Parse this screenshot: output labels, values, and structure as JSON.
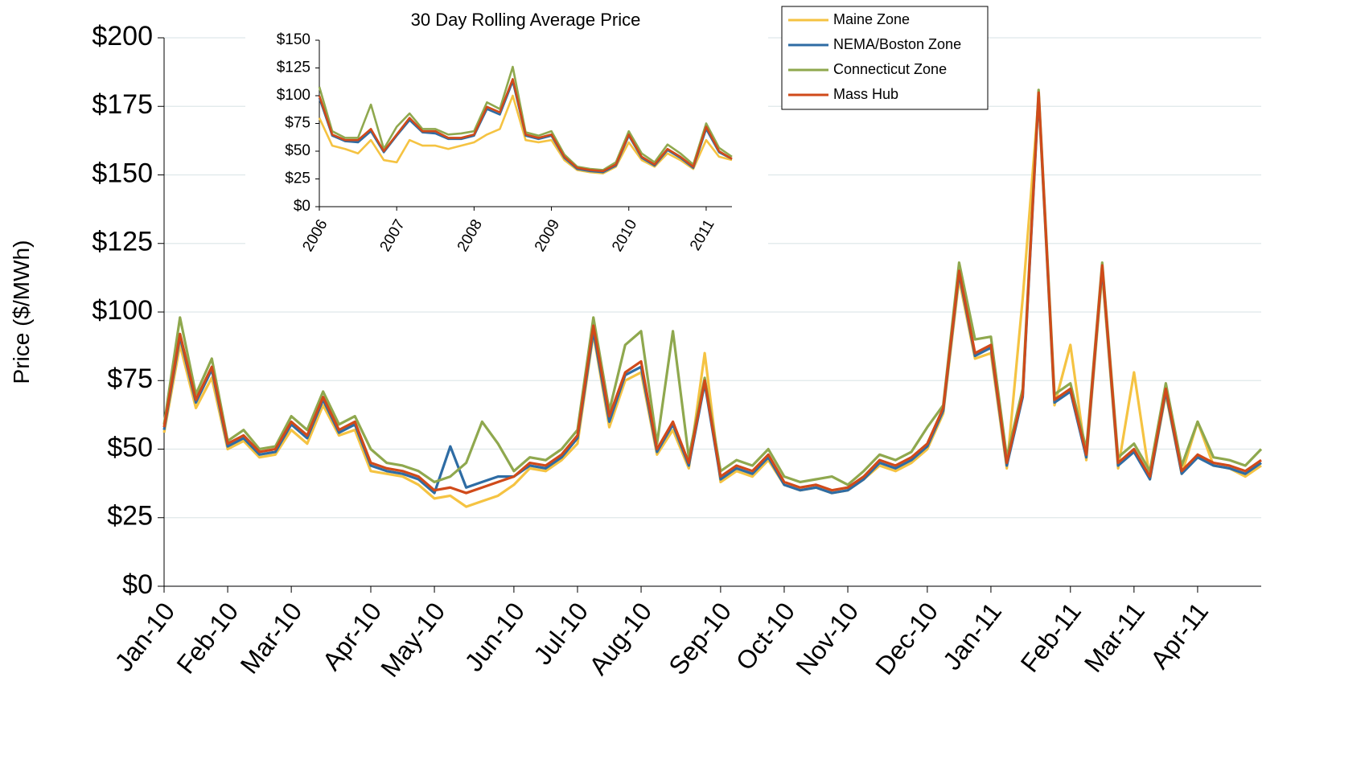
{
  "chart_data": [
    {
      "type": "line",
      "ylabel": "Price ($/MWh)",
      "grid": true,
      "legend": "upper right",
      "categories": [
        "Jan-10",
        null,
        null,
        null,
        "Feb-10",
        null,
        null,
        null,
        "Mar-10",
        null,
        null,
        null,
        null,
        "Apr-10",
        null,
        null,
        null,
        "May-10",
        null,
        null,
        null,
        null,
        "Jun-10",
        null,
        null,
        null,
        "Jul-10",
        null,
        null,
        null,
        "Aug-10",
        null,
        null,
        null,
        null,
        "Sep-10",
        null,
        null,
        null,
        "Oct-10",
        null,
        null,
        null,
        "Nov-10",
        null,
        null,
        null,
        null,
        "Dec-10",
        null,
        null,
        null,
        "Jan-11",
        null,
        null,
        null,
        null,
        "Feb-11",
        null,
        null,
        null,
        "Mar-11",
        null,
        null,
        null,
        "Apr-11",
        null,
        null,
        null,
        null
      ],
      "ylim": [
        0,
        200
      ],
      "yticks": [
        {
          "value": 0,
          "label": "$0"
        },
        {
          "value": 25,
          "label": "$25"
        },
        {
          "value": 50,
          "label": "$50"
        },
        {
          "value": 75,
          "label": "$75"
        },
        {
          "value": 100,
          "label": "$100"
        },
        {
          "value": 125,
          "label": "$125"
        },
        {
          "value": 150,
          "label": "$150"
        },
        {
          "value": 175,
          "label": "$175"
        },
        {
          "value": 200,
          "label": "$200"
        }
      ],
      "series": [
        {
          "name": "Maine Zone",
          "color": "#f5c342",
          "values": [
            56,
            88,
            65,
            76,
            50,
            53,
            47,
            48,
            57,
            52,
            66,
            55,
            57,
            42,
            41,
            40,
            37,
            32,
            33,
            29,
            31,
            33,
            37,
            43,
            42,
            46,
            52,
            92,
            58,
            75,
            78,
            48,
            57,
            43,
            85,
            38,
            42,
            40,
            46,
            37,
            35,
            36,
            34,
            35,
            39,
            44,
            42,
            45,
            50,
            63,
            112,
            83,
            85,
            43,
            105,
            178,
            66,
            88,
            46,
            114,
            43,
            78,
            39,
            70,
            41,
            60,
            44,
            43,
            40,
            44
          ]
        },
        {
          "name": "NEMA/Boston Zone",
          "color": "#2e6ca4",
          "values": [
            57,
            91,
            67,
            79,
            51,
            54,
            48,
            49,
            59,
            54,
            68,
            56,
            59,
            44,
            42,
            41,
            39,
            34,
            51,
            36,
            38,
            40,
            40,
            44,
            43,
            47,
            54,
            93,
            60,
            77,
            80,
            49,
            59,
            44,
            74,
            39,
            43,
            41,
            47,
            37,
            35,
            36,
            34,
            35,
            39,
            45,
            43,
            46,
            51,
            64,
            114,
            84,
            87,
            44,
            69,
            179,
            67,
            71,
            47,
            116,
            44,
            49,
            39,
            71,
            41,
            47,
            44,
            43,
            41,
            45
          ]
        },
        {
          "name": "Connecticut Zone",
          "color": "#8fa84e",
          "values": [
            59,
            98,
            70,
            83,
            53,
            57,
            50,
            51,
            62,
            57,
            71,
            59,
            62,
            50,
            45,
            44,
            42,
            38,
            40,
            45,
            60,
            52,
            42,
            47,
            46,
            50,
            57,
            98,
            64,
            88,
            93,
            52,
            93,
            47,
            76,
            42,
            46,
            44,
            50,
            40,
            38,
            39,
            40,
            37,
            42,
            48,
            46,
            49,
            58,
            66,
            118,
            90,
            91,
            47,
            72,
            181,
            70,
            74,
            50,
            118,
            47,
            52,
            42,
            74,
            44,
            60,
            47,
            46,
            44,
            50
          ]
        },
        {
          "name": "Mass Hub",
          "color": "#d04a1a",
          "values": [
            58,
            92,
            68,
            80,
            52,
            55,
            49,
            50,
            60,
            55,
            69,
            57,
            60,
            45,
            43,
            42,
            40,
            35,
            36,
            34,
            36,
            38,
            40,
            45,
            44,
            48,
            55,
            95,
            62,
            78,
            82,
            50,
            60,
            45,
            75,
            40,
            44,
            42,
            48,
            38,
            36,
            37,
            35,
            36,
            40,
            46,
            44,
            47,
            52,
            65,
            115,
            85,
            88,
            45,
            70,
            180,
            68,
            72,
            48,
            117,
            45,
            50,
            40,
            72,
            42,
            48,
            45,
            44,
            42,
            46
          ]
        }
      ]
    },
    {
      "type": "line",
      "title": "30 Day Rolling Average Price",
      "categories": [
        "2006",
        null,
        null,
        null,
        null,
        null,
        "2007",
        null,
        null,
        null,
        null,
        null,
        "2008",
        null,
        null,
        null,
        null,
        null,
        "2009",
        null,
        null,
        null,
        null,
        null,
        "2010",
        null,
        null,
        null,
        null,
        null,
        "2011",
        null,
        null
      ],
      "ylim": [
        0,
        150
      ],
      "yticks": [
        {
          "value": 0,
          "label": "$0"
        },
        {
          "value": 25,
          "label": "$25"
        },
        {
          "value": 50,
          "label": "$50"
        },
        {
          "value": 75,
          "label": "$75"
        },
        {
          "value": 100,
          "label": "$100"
        },
        {
          "value": 125,
          "label": "$125"
        },
        {
          "value": 150,
          "label": "$150"
        }
      ],
      "series": [
        {
          "color": "#f5c342",
          "values": [
            80,
            55,
            52,
            48,
            60,
            42,
            40,
            60,
            55,
            55,
            52,
            55,
            58,
            65,
            70,
            100,
            60,
            58,
            60,
            42,
            33,
            31,
            30,
            36,
            58,
            42,
            36,
            48,
            42,
            34,
            60,
            45,
            42
          ]
        },
        {
          "color": "#2e6ca4",
          "values": [
            98,
            64,
            59,
            58,
            68,
            49,
            64,
            78,
            67,
            66,
            61,
            61,
            64,
            88,
            83,
            113,
            64,
            61,
            64,
            44,
            34,
            32,
            31,
            37,
            64,
            44,
            37,
            51,
            44,
            35,
            70,
            49,
            43
          ]
        },
        {
          "color": "#8fa84e",
          "values": [
            108,
            68,
            62,
            62,
            92,
            52,
            72,
            84,
            70,
            70,
            65,
            66,
            68,
            94,
            88,
            126,
            67,
            64,
            68,
            47,
            36,
            34,
            33,
            40,
            68,
            48,
            40,
            56,
            48,
            38,
            75,
            53,
            45
          ]
        },
        {
          "color": "#d04a1a",
          "values": [
            100,
            65,
            60,
            60,
            70,
            50,
            65,
            80,
            68,
            68,
            62,
            62,
            65,
            90,
            85,
            115,
            65,
            62,
            65,
            45,
            35,
            33,
            32,
            38,
            65,
            45,
            38,
            52,
            45,
            36,
            72,
            50,
            43
          ]
        }
      ]
    }
  ]
}
